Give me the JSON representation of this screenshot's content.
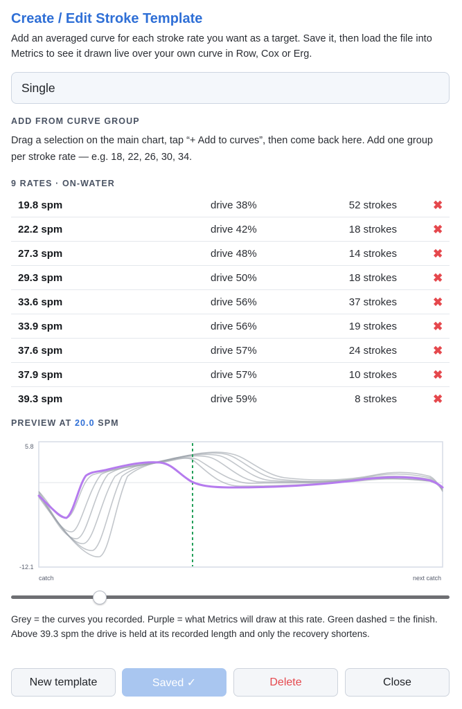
{
  "header": {
    "title": "Create / Edit Stroke Template",
    "intro": "Add an averaged curve for each stroke rate you want as a target. Save it, then load the file into Metrics to see it drawn live over your own curve in Row, Cox or Erg."
  },
  "template_name": {
    "value": "Single"
  },
  "curve_group": {
    "label": "ADD FROM CURVE GROUP",
    "help": "Drag a selection on the main chart, tap “+ Add to curves”, then come back here. Add one group per stroke rate — e.g. 18, 22, 26, 30, 34."
  },
  "rates": {
    "label": "9 RATES · ON-WATER",
    "delete_glyph": "✖",
    "items": [
      {
        "spm": "19.8 spm",
        "drive": "drive 38%",
        "strokes": "52 strokes"
      },
      {
        "spm": "22.2 spm",
        "drive": "drive 42%",
        "strokes": "18 strokes"
      },
      {
        "spm": "27.3 spm",
        "drive": "drive 48%",
        "strokes": "14 strokes"
      },
      {
        "spm": "29.3 spm",
        "drive": "drive 50%",
        "strokes": "18 strokes"
      },
      {
        "spm": "33.6 spm",
        "drive": "drive 56%",
        "strokes": "37 strokes"
      },
      {
        "spm": "33.9 spm",
        "drive": "drive 56%",
        "strokes": "19 strokes"
      },
      {
        "spm": "37.6 spm",
        "drive": "drive 57%",
        "strokes": "24 strokes"
      },
      {
        "spm": "37.9 spm",
        "drive": "drive 57%",
        "strokes": "10 strokes"
      },
      {
        "spm": "39.3 spm",
        "drive": "drive 59%",
        "strokes": "8 strokes"
      }
    ]
  },
  "preview": {
    "label_prefix": "PREVIEW AT",
    "value": "20.0",
    "label_suffix": "SPM",
    "slider_fraction": 0.2,
    "chart": {
      "y_max_label": "5.8",
      "y_min_label": "-12.1",
      "x_start_label": "catch",
      "x_end_label": "next catch"
    },
    "colors": {
      "grey": "#9aa0a8",
      "purple": "#b57bee",
      "green": "#23a05a",
      "accent": "#2f6fd6"
    }
  },
  "explanation": "Grey = the curves you recorded. Purple = what Metrics will draw at this rate. Green dashed = the finish. Above 39.3 spm the drive is held at its recorded length and only the recovery shortens.",
  "buttons": {
    "new": "New template",
    "saved": "Saved ✓",
    "delete": "Delete",
    "close": "Close"
  }
}
